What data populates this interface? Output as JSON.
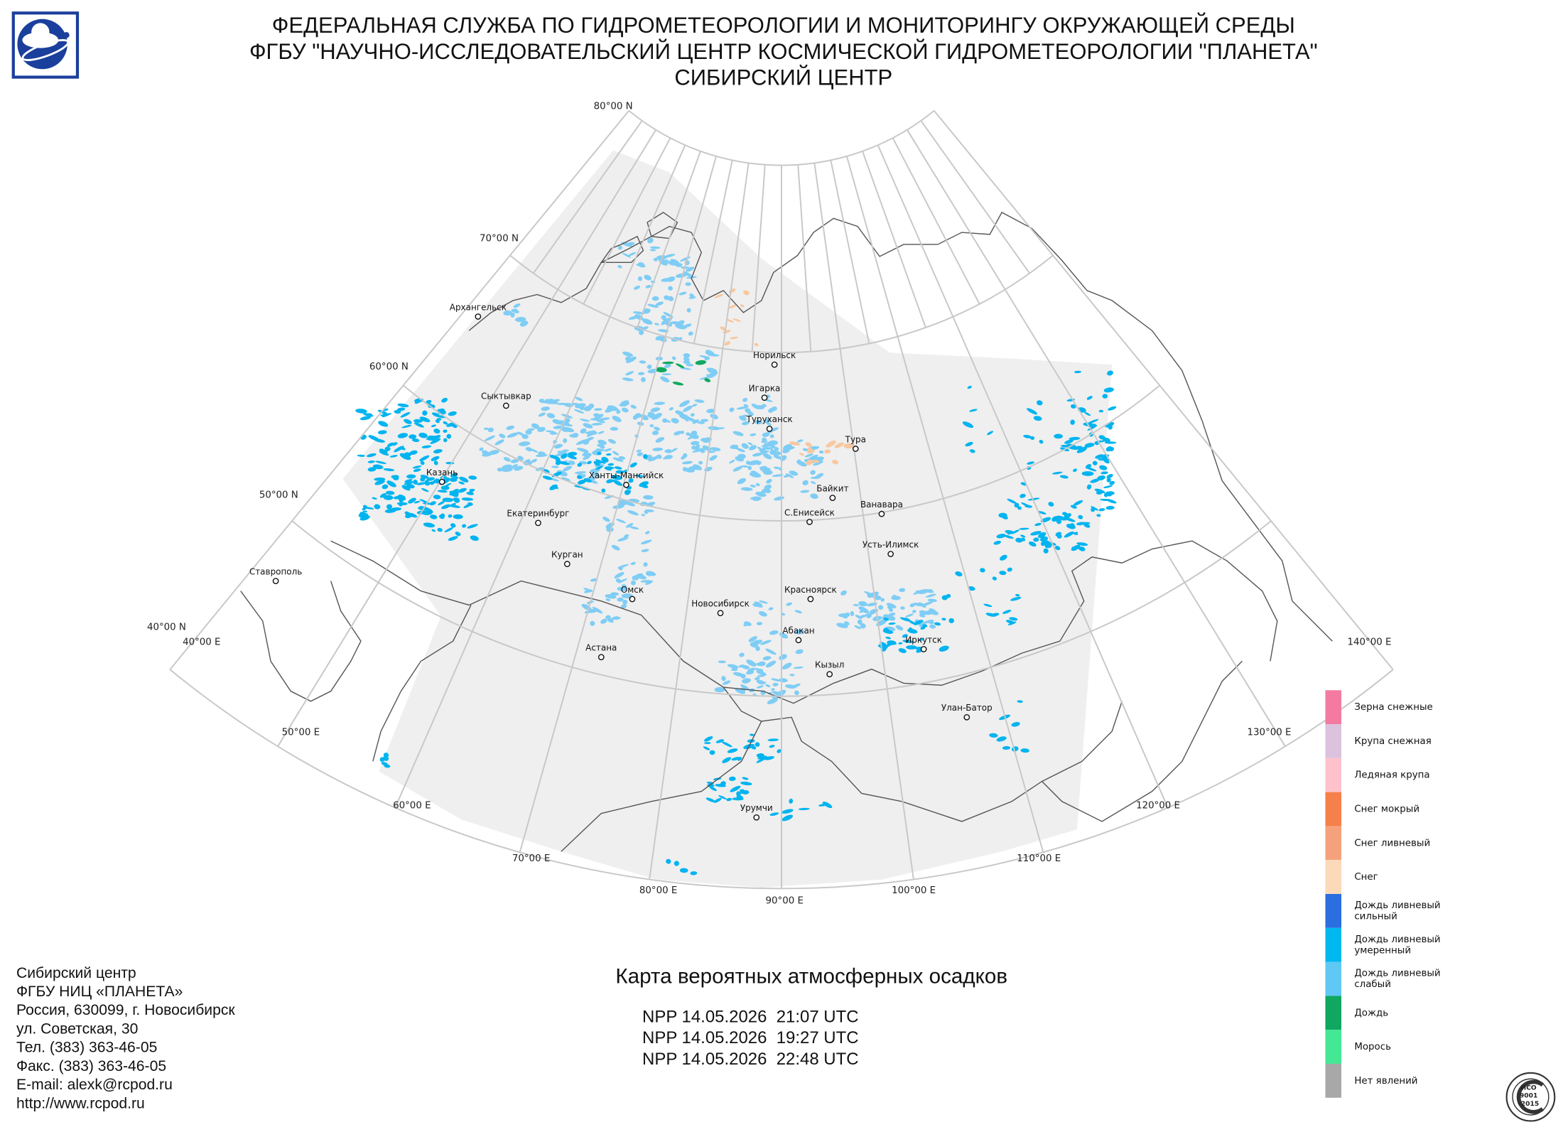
{
  "header": {
    "lines": [
      "ФЕДЕРАЛЬНАЯ СЛУЖБА ПО ГИДРОМЕТЕОРОЛОГИИ И МОНИТОРИНГУ ОКРУЖАЮЩЕЙ СРЕДЫ",
      "ФГБУ \"НАУЧНО-ИССЛЕДОВАТЕЛЬСКИЙ ЦЕНТР КОСМИЧЕСКОЙ ГИДРОМЕТЕОРОЛОГИИ \"ПЛАНЕТА\"",
      "СИБИРСКИЙ ЦЕНТР"
    ]
  },
  "map": {
    "latitude_labels": [
      "80°00 N",
      "70°00 N",
      "60°00 N",
      "50°00 N",
      "40°00 N"
    ],
    "longitude_labels": [
      "40°00 E",
      "50°00 E",
      "60°00 E",
      "70°00 E",
      "80°00 E",
      "90°00 E",
      "100°00 E",
      "110°00 E",
      "120°00 E",
      "130°00 E",
      "140°00 E"
    ],
    "cities": [
      "Архангельск",
      "Сыктывкар",
      "Казань",
      "Екатеринбург",
      "Курган",
      "Ставрополь",
      "Ханты-Мансийск",
      "Омск",
      "Астана",
      "Новосибирск",
      "Норильск",
      "Игарка",
      "Туруханск",
      "Тура",
      "Байкит",
      "Ванавара",
      "С.Енисейск",
      "Усть-Илимск",
      "Красноярск",
      "Абакан",
      "Кызыл",
      "Иркутск",
      "Улан-Батор",
      "Урумчи"
    ]
  },
  "legend": {
    "items": [
      {
        "label": [
          "Зерна снежные"
        ],
        "color": "#f47aa2"
      },
      {
        "label": [
          "Крупа снежная"
        ],
        "color": "#dcc2dc"
      },
      {
        "label": [
          "Ледяная крупа"
        ],
        "color": "#ffc2cc"
      },
      {
        "label": [
          "Снег мокрый"
        ],
        "color": "#f5804a"
      },
      {
        "label": [
          "Снег ливневый"
        ],
        "color": "#f5a27c"
      },
      {
        "label": [
          "Снег"
        ],
        "color": "#fbd9b9"
      },
      {
        "label": [
          "Дождь ливневый",
          "сильный"
        ],
        "color": "#2a6ee0"
      },
      {
        "label": [
          "Дождь ливневый",
          "умеренный"
        ],
        "color": "#00b8f0"
      },
      {
        "label": [
          "Дождь ливневый",
          "слабый"
        ],
        "color": "#60c8f5"
      },
      {
        "label": [
          "Дождь"
        ],
        "color": "#10a860"
      },
      {
        "label": [
          "Морось"
        ],
        "color": "#44e894"
      },
      {
        "label": [
          "Нет явлений"
        ],
        "color": "#a8a8a8"
      }
    ]
  },
  "footer": {
    "address": [
      "Сибирский центр",
      "ФГБУ НИЦ «ПЛАНЕТА»",
      "Россия, 630099, г. Новосибирск",
      "ул. Советская, 30",
      "Тел. (383) 363-46-05",
      "Факс. (383) 363-46-05",
      "E-mail: alexk@rcpod.ru",
      "http://www.rcpod.ru"
    ],
    "map_title": "Карта вероятных атмосферных осадков",
    "passes": [
      "NPP 14.05.2026  21:07 UTC",
      "NPP 14.05.2026  19:27 UTC",
      "NPP 14.05.2026  22:48 UTC"
    ]
  },
  "iso_logo": {
    "lines": [
      "ИСО",
      "9001",
      "-2015"
    ]
  }
}
